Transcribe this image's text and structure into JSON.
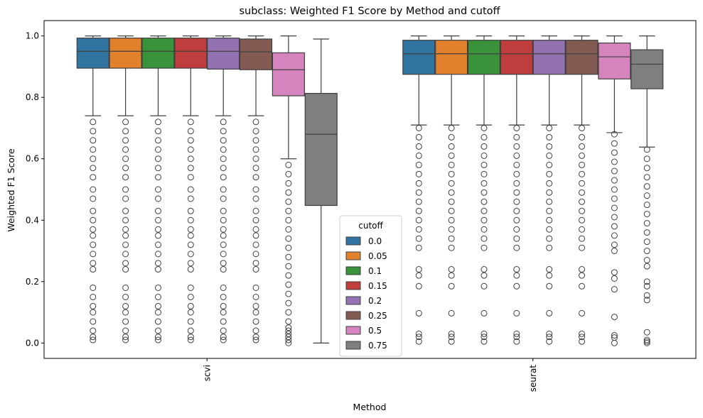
{
  "chart_data": {
    "type": "box",
    "title": "subclass: Weighted F1 Score by Method and cutoff",
    "xlabel": "Method",
    "ylabel": "Weighted F1 Score",
    "categories": [
      "scvi",
      "seurat"
    ],
    "ylim": [
      -0.05,
      1.05
    ],
    "yticks": [
      "0.0",
      "0.2",
      "0.4",
      "0.6",
      "0.8",
      "1.0"
    ],
    "grid": false,
    "legend": {
      "title": "cutoff",
      "placement": "lower-center"
    },
    "series": [
      {
        "name": "0.0",
        "color": "#3274a1",
        "boxes": [
          {
            "category": "scvi",
            "whisker_low": 0.74,
            "q1": 0.895,
            "median": 0.95,
            "q3": 0.993,
            "whisker_high": 1.0,
            "outliers": [
              0.72,
              0.69,
              0.66,
              0.63,
              0.6,
              0.57,
              0.54,
              0.5,
              0.47,
              0.43,
              0.4,
              0.37,
              0.35,
              0.32,
              0.29,
              0.26,
              0.24,
              0.18,
              0.15,
              0.12,
              0.1,
              0.07,
              0.04,
              0.02,
              0.01
            ]
          },
          {
            "category": "seurat",
            "whisker_low": 0.71,
            "q1": 0.875,
            "median": 0.942,
            "q3": 0.986,
            "whisker_high": 1.0,
            "outliers": [
              0.7,
              0.67,
              0.64,
              0.61,
              0.58,
              0.55,
              0.52,
              0.49,
              0.46,
              0.43,
              0.4,
              0.37,
              0.34,
              0.31,
              0.24,
              0.22,
              0.185,
              0.097,
              0.03,
              0.02,
              0.005
            ]
          }
        ]
      },
      {
        "name": "0.05",
        "color": "#e1812c",
        "boxes": [
          {
            "category": "scvi",
            "whisker_low": 0.74,
            "q1": 0.895,
            "median": 0.95,
            "q3": 0.993,
            "whisker_high": 1.0,
            "outliers": [
              0.72,
              0.69,
              0.66,
              0.63,
              0.6,
              0.57,
              0.54,
              0.5,
              0.47,
              0.43,
              0.4,
              0.37,
              0.35,
              0.32,
              0.29,
              0.26,
              0.24,
              0.18,
              0.15,
              0.12,
              0.1,
              0.07,
              0.04,
              0.02,
              0.01
            ]
          },
          {
            "category": "seurat",
            "whisker_low": 0.71,
            "q1": 0.875,
            "median": 0.942,
            "q3": 0.986,
            "whisker_high": 1.0,
            "outliers": [
              0.7,
              0.67,
              0.64,
              0.61,
              0.58,
              0.55,
              0.52,
              0.49,
              0.46,
              0.43,
              0.4,
              0.37,
              0.34,
              0.31,
              0.24,
              0.22,
              0.185,
              0.097,
              0.03,
              0.02,
              0.005
            ]
          }
        ]
      },
      {
        "name": "0.1",
        "color": "#3a923a",
        "boxes": [
          {
            "category": "scvi",
            "whisker_low": 0.74,
            "q1": 0.895,
            "median": 0.95,
            "q3": 0.993,
            "whisker_high": 1.0,
            "outliers": [
              0.72,
              0.69,
              0.66,
              0.63,
              0.6,
              0.57,
              0.54,
              0.5,
              0.47,
              0.43,
              0.4,
              0.37,
              0.35,
              0.32,
              0.29,
              0.26,
              0.24,
              0.18,
              0.15,
              0.12,
              0.1,
              0.07,
              0.04,
              0.02,
              0.01
            ]
          },
          {
            "category": "seurat",
            "whisker_low": 0.71,
            "q1": 0.875,
            "median": 0.942,
            "q3": 0.986,
            "whisker_high": 1.0,
            "outliers": [
              0.7,
              0.67,
              0.64,
              0.61,
              0.58,
              0.55,
              0.52,
              0.49,
              0.46,
              0.43,
              0.4,
              0.37,
              0.34,
              0.31,
              0.24,
              0.22,
              0.185,
              0.097,
              0.03,
              0.02,
              0.005
            ]
          }
        ]
      },
      {
        "name": "0.15",
        "color": "#c03d3e",
        "boxes": [
          {
            "category": "scvi",
            "whisker_low": 0.74,
            "q1": 0.895,
            "median": 0.95,
            "q3": 0.993,
            "whisker_high": 1.0,
            "outliers": [
              0.72,
              0.69,
              0.66,
              0.63,
              0.6,
              0.57,
              0.54,
              0.5,
              0.47,
              0.43,
              0.4,
              0.37,
              0.35,
              0.32,
              0.29,
              0.26,
              0.24,
              0.18,
              0.15,
              0.12,
              0.1,
              0.07,
              0.04,
              0.02,
              0.01
            ]
          },
          {
            "category": "seurat",
            "whisker_low": 0.71,
            "q1": 0.875,
            "median": 0.942,
            "q3": 0.986,
            "whisker_high": 1.0,
            "outliers": [
              0.7,
              0.67,
              0.64,
              0.61,
              0.58,
              0.55,
              0.52,
              0.49,
              0.46,
              0.43,
              0.4,
              0.37,
              0.34,
              0.31,
              0.24,
              0.22,
              0.185,
              0.097,
              0.03,
              0.02,
              0.005
            ]
          }
        ]
      },
      {
        "name": "0.2",
        "color": "#9372b2",
        "boxes": [
          {
            "category": "scvi",
            "whisker_low": 0.74,
            "q1": 0.892,
            "median": 0.95,
            "q3": 0.993,
            "whisker_high": 1.0,
            "outliers": [
              0.72,
              0.69,
              0.66,
              0.63,
              0.6,
              0.57,
              0.54,
              0.5,
              0.47,
              0.43,
              0.4,
              0.37,
              0.35,
              0.32,
              0.29,
              0.26,
              0.24,
              0.18,
              0.15,
              0.12,
              0.1,
              0.07,
              0.04,
              0.02,
              0.01
            ]
          },
          {
            "category": "seurat",
            "whisker_low": 0.71,
            "q1": 0.875,
            "median": 0.942,
            "q3": 0.986,
            "whisker_high": 1.0,
            "outliers": [
              0.7,
              0.67,
              0.64,
              0.61,
              0.58,
              0.55,
              0.52,
              0.49,
              0.46,
              0.43,
              0.4,
              0.37,
              0.34,
              0.31,
              0.24,
              0.22,
              0.185,
              0.097,
              0.03,
              0.02,
              0.005
            ]
          }
        ]
      },
      {
        "name": "0.25",
        "color": "#845b53",
        "boxes": [
          {
            "category": "scvi",
            "whisker_low": 0.74,
            "q1": 0.89,
            "median": 0.948,
            "q3": 0.99,
            "whisker_high": 1.0,
            "outliers": [
              0.72,
              0.69,
              0.66,
              0.63,
              0.6,
              0.57,
              0.54,
              0.5,
              0.47,
              0.43,
              0.4,
              0.37,
              0.35,
              0.32,
              0.29,
              0.26,
              0.24,
              0.18,
              0.15,
              0.12,
              0.1,
              0.07,
              0.04,
              0.02,
              0.01
            ]
          },
          {
            "category": "seurat",
            "whisker_low": 0.71,
            "q1": 0.875,
            "median": 0.942,
            "q3": 0.986,
            "whisker_high": 1.0,
            "outliers": [
              0.7,
              0.67,
              0.64,
              0.61,
              0.58,
              0.55,
              0.52,
              0.49,
              0.46,
              0.43,
              0.4,
              0.37,
              0.34,
              0.31,
              0.24,
              0.22,
              0.185,
              0.097,
              0.03,
              0.02,
              0.005
            ]
          }
        ]
      },
      {
        "name": "0.5",
        "color": "#d684bd",
        "boxes": [
          {
            "category": "scvi",
            "whisker_low": 0.6,
            "q1": 0.805,
            "median": 0.89,
            "q3": 0.945,
            "whisker_high": 1.0,
            "outliers": [
              0.58,
              0.55,
              0.52,
              0.49,
              0.46,
              0.43,
              0.4,
              0.37,
              0.34,
              0.31,
              0.28,
              0.25,
              0.22,
              0.19,
              0.16,
              0.13,
              0.1,
              0.07,
              0.05,
              0.04,
              0.03,
              0.02,
              0.01,
              0.0
            ]
          },
          {
            "category": "seurat",
            "whisker_low": 0.685,
            "q1": 0.86,
            "median": 0.932,
            "q3": 0.977,
            "whisker_high": 1.0,
            "outliers": [
              0.68,
              0.65,
              0.62,
              0.59,
              0.56,
              0.53,
              0.5,
              0.47,
              0.44,
              0.41,
              0.38,
              0.35,
              0.32,
              0.3,
              0.23,
              0.21,
              0.175,
              0.085,
              0.025,
              0.018,
              0.0
            ]
          }
        ]
      },
      {
        "name": "0.75",
        "color": "#7f7f7f",
        "boxes": [
          {
            "category": "scvi",
            "whisker_low": 0.0,
            "q1": 0.448,
            "median": 0.68,
            "q3": 0.813,
            "whisker_high": 0.99,
            "outliers": []
          },
          {
            "category": "seurat",
            "whisker_low": 0.638,
            "q1": 0.828,
            "median": 0.908,
            "q3": 0.955,
            "whisker_high": 1.0,
            "outliers": [
              0.63,
              0.6,
              0.57,
              0.54,
              0.51,
              0.48,
              0.45,
              0.42,
              0.39,
              0.36,
              0.33,
              0.3,
              0.27,
              0.25,
              0.2,
              0.185,
              0.155,
              0.14,
              0.035,
              0.01,
              0.005,
              0.0
            ]
          }
        ]
      }
    ]
  }
}
